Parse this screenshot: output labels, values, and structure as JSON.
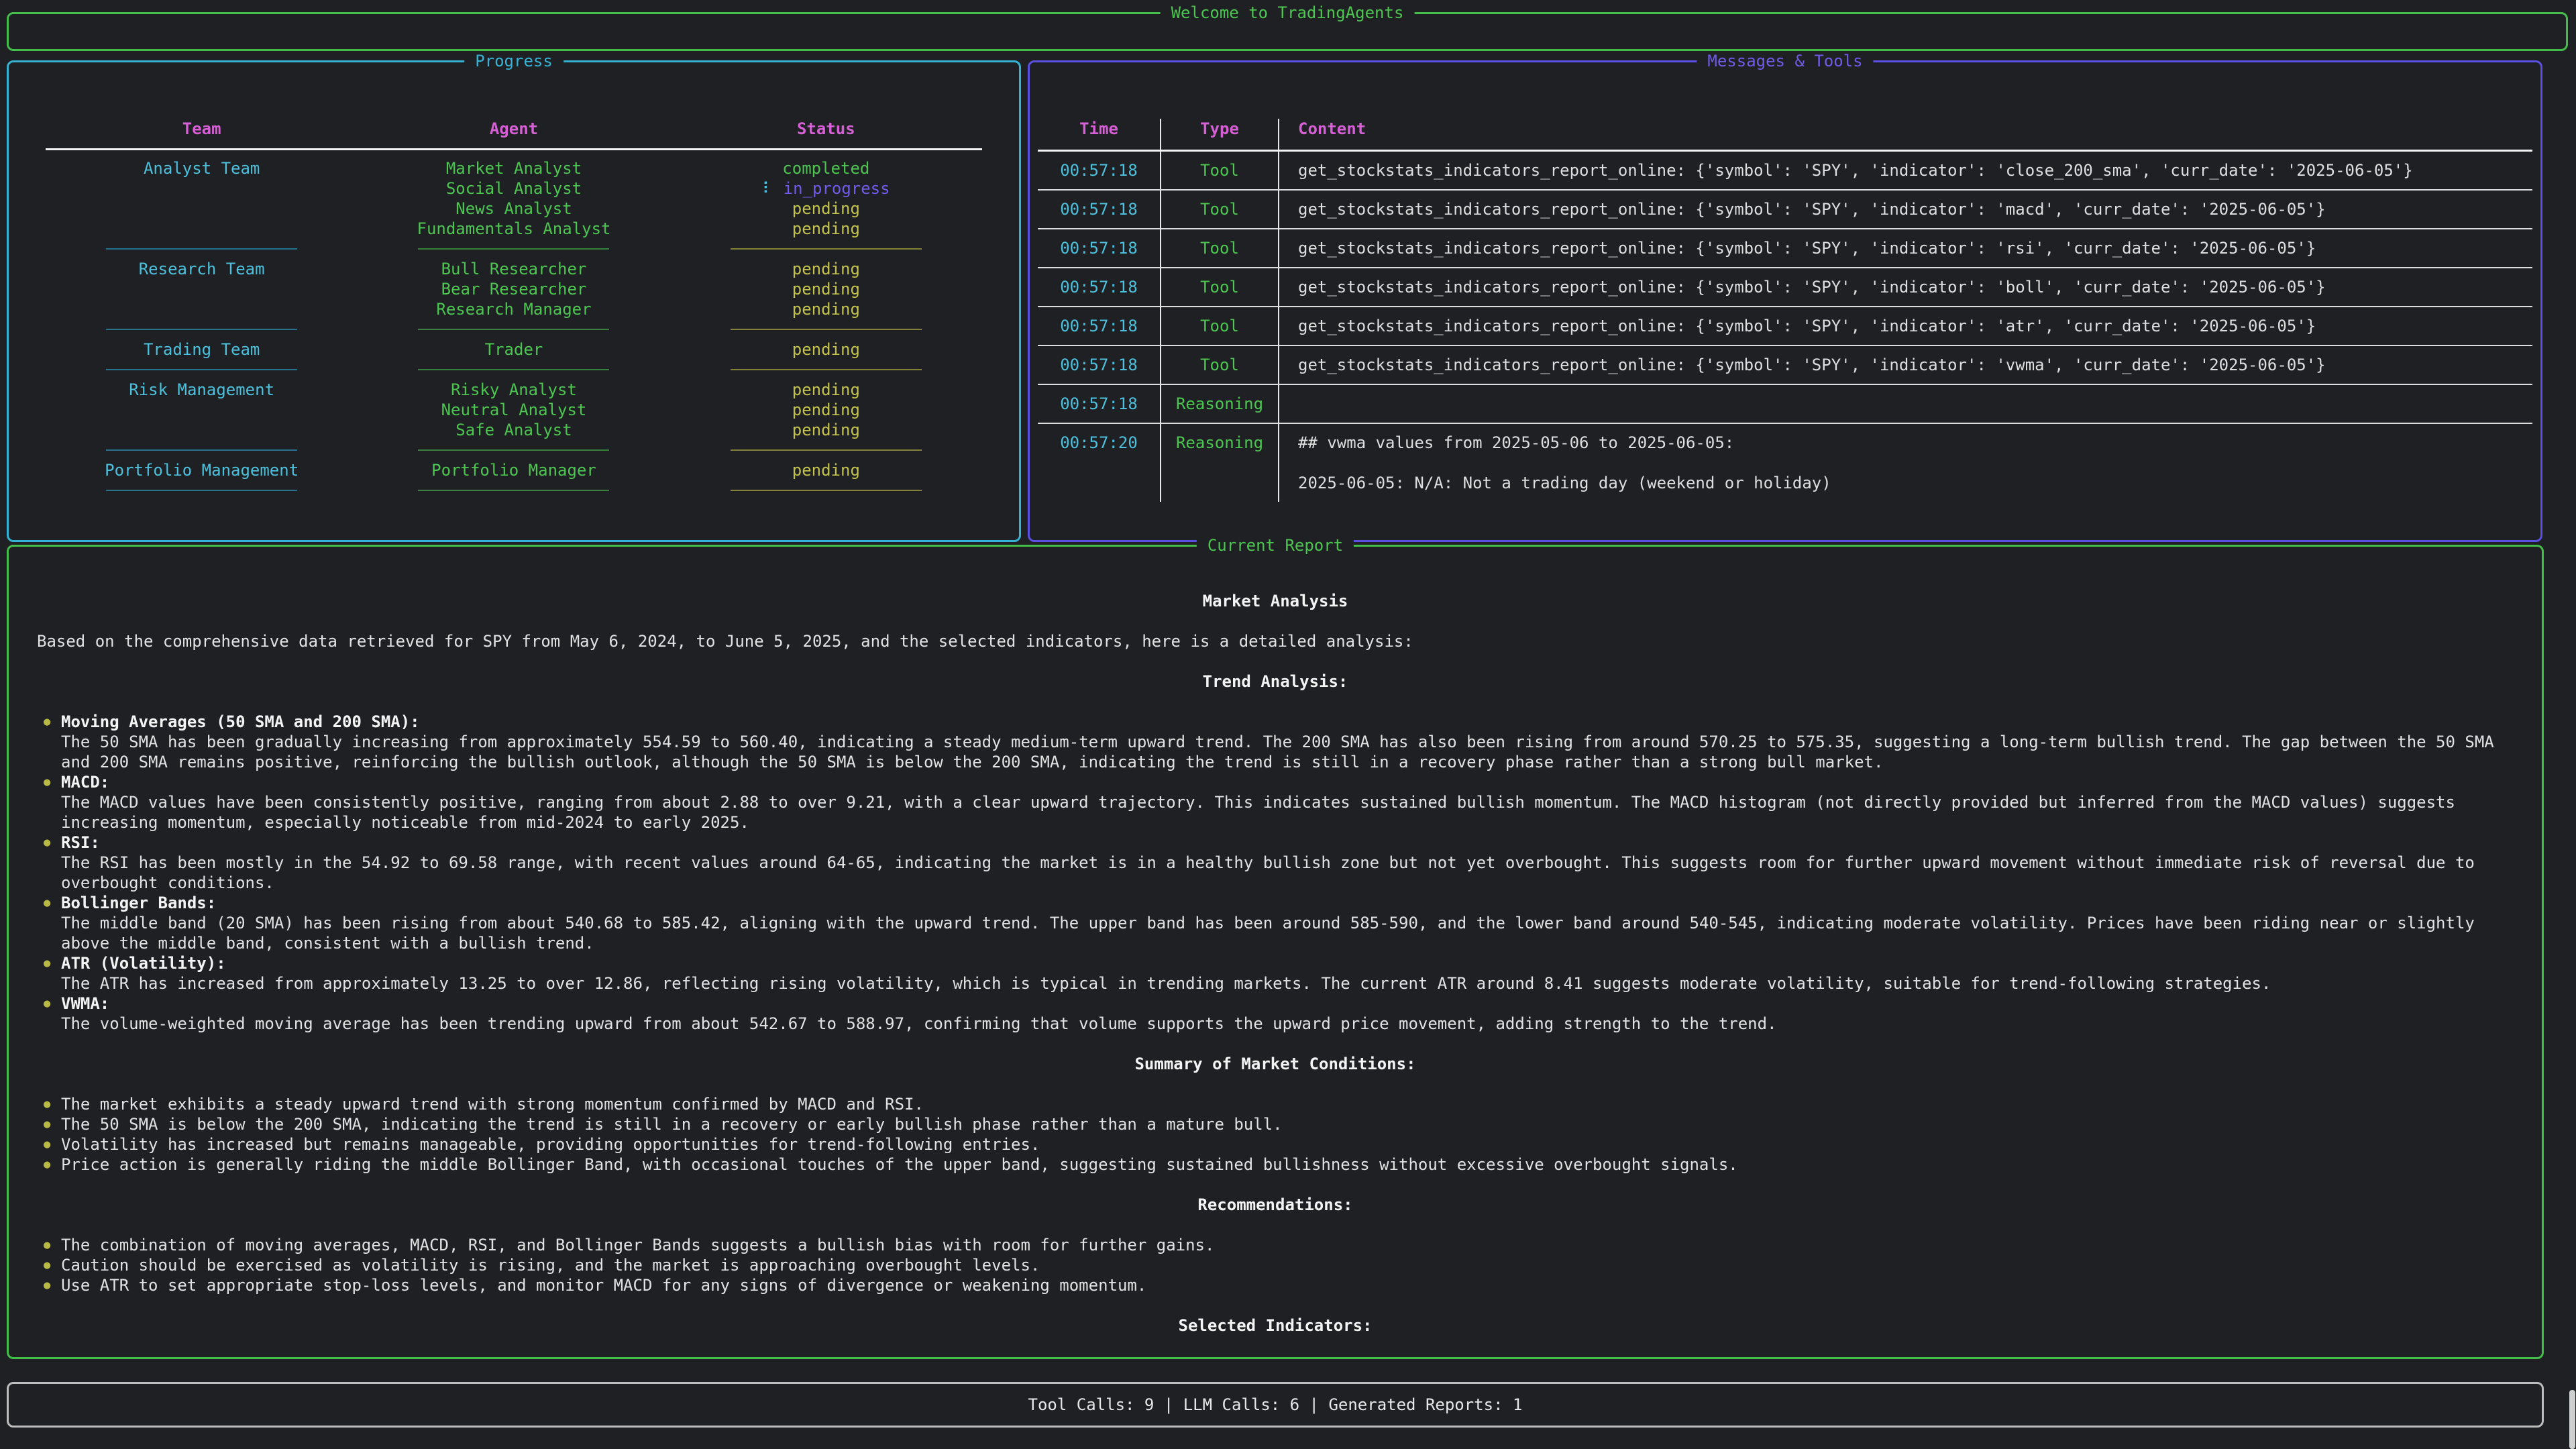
{
  "welcome": {
    "title": "Welcome to TradingAgents"
  },
  "icons": {
    "spinner": "⠇",
    "bullet": "●"
  },
  "progress": {
    "title": "Progress",
    "columns": [
      "Team",
      "Agent",
      "Status"
    ],
    "rows": [
      {
        "team": "Analyst Team",
        "agent": "Market Analyst",
        "status": "completed"
      },
      {
        "agent": "Social Analyst",
        "status": "in_progress",
        "spinner": true
      },
      {
        "agent": "News Analyst",
        "status": "pending"
      },
      {
        "agent": "Fundamentals Analyst",
        "status": "pending"
      },
      {
        "divider": true
      },
      {
        "team": "Research Team",
        "agent": "Bull Researcher",
        "status": "pending"
      },
      {
        "agent": "Bear Researcher",
        "status": "pending"
      },
      {
        "agent": "Research Manager",
        "status": "pending"
      },
      {
        "divider": true
      },
      {
        "team": "Trading Team",
        "agent": "Trader",
        "status": "pending"
      },
      {
        "divider": true
      },
      {
        "team": "Risk Management",
        "agent": "Risky Analyst",
        "status": "pending"
      },
      {
        "agent": "Neutral Analyst",
        "status": "pending"
      },
      {
        "agent": "Safe Analyst",
        "status": "pending"
      },
      {
        "divider": true
      },
      {
        "team": "Portfolio Management",
        "agent": "Portfolio Manager",
        "status": "pending"
      },
      {
        "divider": true
      }
    ]
  },
  "messages": {
    "title": "Messages & Tools",
    "columns": [
      "Time",
      "Type",
      "Content"
    ],
    "rows": [
      {
        "time": "00:57:18",
        "type": "Tool",
        "content": "get_stockstats_indicators_report_online: {'symbol': 'SPY', 'indicator': 'close_200_sma', 'curr_date': '2025-06-05'}"
      },
      {
        "time": "00:57:18",
        "type": "Tool",
        "content": "get_stockstats_indicators_report_online: {'symbol': 'SPY', 'indicator': 'macd', 'curr_date': '2025-06-05'}"
      },
      {
        "time": "00:57:18",
        "type": "Tool",
        "content": "get_stockstats_indicators_report_online: {'symbol': 'SPY', 'indicator': 'rsi', 'curr_date': '2025-06-05'}"
      },
      {
        "time": "00:57:18",
        "type": "Tool",
        "content": "get_stockstats_indicators_report_online: {'symbol': 'SPY', 'indicator': 'boll', 'curr_date': '2025-06-05'}"
      },
      {
        "time": "00:57:18",
        "type": "Tool",
        "content": "get_stockstats_indicators_report_online: {'symbol': 'SPY', 'indicator': 'atr', 'curr_date': '2025-06-05'}"
      },
      {
        "time": "00:57:18",
        "type": "Tool",
        "content": "get_stockstats_indicators_report_online: {'symbol': 'SPY', 'indicator': 'vwma', 'curr_date': '2025-06-05'}"
      },
      {
        "time": "00:57:18",
        "type": "Reasoning",
        "content": ""
      },
      {
        "time": "00:57:20",
        "type": "Reasoning",
        "content": "## vwma values from 2025-05-06 to 2025-06-05:\n\n2025-06-05: N/A: Not a trading day (weekend or holiday)"
      }
    ]
  },
  "report": {
    "title": "Current Report",
    "sections": [
      {
        "heading": "Market Analysis"
      },
      {
        "paragraph": "Based on the comprehensive data retrieved for SPY from May 6, 2024, to June 5, 2025, and the selected indicators, here is a detailed analysis:"
      },
      {
        "heading": "Trend Analysis:"
      },
      {
        "bullets": [
          {
            "label": "Moving Averages (50 SMA and 200 SMA):",
            "text": "The 50 SMA has been gradually increasing from approximately 554.59 to 560.40, indicating a steady medium-term upward trend. The 200 SMA has also been rising from around 570.25 to 575.35, suggesting a long-term bullish trend. The gap between the 50 SMA and 200 SMA remains positive, reinforcing the bullish outlook, although the 50 SMA is below the 200 SMA, indicating the trend is still in a recovery phase rather than a strong bull market."
          },
          {
            "label": "MACD:",
            "text": "The MACD values have been consistently positive, ranging from about 2.88 to over 9.21, with a clear upward trajectory. This indicates sustained bullish momentum. The MACD histogram (not directly provided but inferred from the MACD values) suggests increasing momentum, especially noticeable from mid-2024 to early 2025."
          },
          {
            "label": "RSI:",
            "text": "The RSI has been mostly in the 54.92 to 69.58 range, with recent values around 64-65, indicating the market is in a healthy bullish zone but not yet overbought. This suggests room for further upward movement without immediate risk of reversal due to overbought conditions."
          },
          {
            "label": "Bollinger Bands:",
            "text": "The middle band (20 SMA) has been rising from about 540.68 to 585.42, aligning with the upward trend. The upper band has been around 585-590, and the lower band around 540-545, indicating moderate volatility. Prices have been riding near or slightly above the middle band, consistent with a bullish trend."
          },
          {
            "label": "ATR (Volatility):",
            "text": "The ATR has increased from approximately 13.25 to over 12.86, reflecting rising volatility, which is typical in trending markets. The current ATR around 8.41 suggests moderate volatility, suitable for trend-following strategies."
          },
          {
            "label": "VWMA:",
            "text": "The volume-weighted moving average has been trending upward from about 542.67 to 588.97, confirming that volume supports the upward price movement, adding strength to the trend."
          }
        ]
      },
      {
        "heading": "Summary of Market Conditions:"
      },
      {
        "bullets": [
          {
            "text": "The market exhibits a steady upward trend with strong momentum confirmed by MACD and RSI."
          },
          {
            "text": "The 50 SMA is below the 200 SMA, indicating the trend is still in a recovery or early bullish phase rather than a mature bull."
          },
          {
            "text": "Volatility has increased but remains manageable, providing opportunities for trend-following entries."
          },
          {
            "text": "Price action is generally riding the middle Bollinger Band, with occasional touches of the upper band, suggesting sustained bullishness without excessive overbought signals."
          }
        ]
      },
      {
        "heading": "Recommendations:"
      },
      {
        "bullets": [
          {
            "text": "The combination of moving averages, MACD, RSI, and Bollinger Bands suggests a bullish bias with room for further gains."
          },
          {
            "text": "Caution should be exercised as volatility is rising, and the market is approaching overbought levels."
          },
          {
            "text": "Use ATR to set appropriate stop-loss levels, and monitor MACD for any signs of divergence or weakening momentum."
          }
        ]
      },
      {
        "heading": "Selected Indicators:"
      }
    ]
  },
  "stats": {
    "text": "Tool Calls: 9 | LLM Calls: 6 | Generated Reports: 1"
  }
}
